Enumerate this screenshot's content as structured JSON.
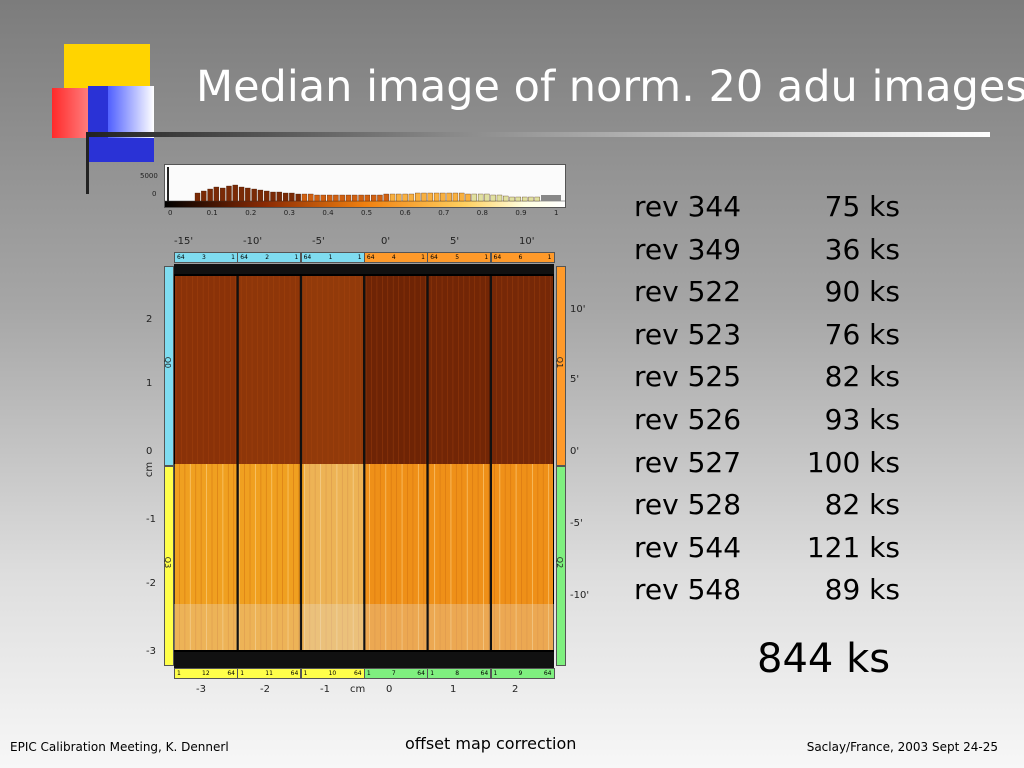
{
  "slide": {
    "title": "Median image of norm. 20 adu images",
    "footer_left": "EPIC Calibration Meeting, K. Dennerl",
    "footer_center": "offset map correction",
    "footer_right": "Saclay/France, 2003 Sept 24-25",
    "total": "844 ks"
  },
  "histogram": {
    "y_ticks": [
      "5000",
      "0"
    ],
    "x_ticks": [
      "0",
      "0.1",
      "0.2",
      "0.3",
      "0.4",
      "0.5",
      "0.6",
      "0.7",
      "0.8",
      "0.9",
      "1"
    ]
  },
  "detector": {
    "top_ticks": [
      "-15'",
      "-10'",
      "-5'",
      "0'",
      "5'",
      "10'"
    ],
    "bottom_ticks": [
      "-3",
      "-2",
      "-1",
      "cm",
      "0",
      "1",
      "2"
    ],
    "left_ticks": [
      "2",
      "1",
      "0",
      "cm",
      "-1",
      "-2",
      "-3"
    ],
    "right_ticks": [
      "10'",
      "5'",
      "0'",
      "-5'",
      "-10'"
    ],
    "quadrant_labels": [
      "Q0",
      "Q1",
      "Q2",
      "Q3"
    ],
    "top_ccds": [
      {
        "first": "64",
        "num": "3",
        "last": "1"
      },
      {
        "first": "64",
        "num": "2",
        "last": "1"
      },
      {
        "first": "64",
        "num": "1",
        "last": "1"
      },
      {
        "first": "64",
        "num": "4",
        "last": "1"
      },
      {
        "first": "64",
        "num": "5",
        "last": "1"
      },
      {
        "first": "64",
        "num": "6",
        "last": "1"
      }
    ],
    "bottom_ccds": [
      {
        "first": "1",
        "num": "12",
        "last": "64"
      },
      {
        "first": "1",
        "num": "11",
        "last": "64"
      },
      {
        "first": "1",
        "num": "10",
        "last": "64"
      },
      {
        "first": "1",
        "num": "7",
        "last": "64"
      },
      {
        "first": "1",
        "num": "8",
        "last": "64"
      },
      {
        "first": "1",
        "num": "9",
        "last": "64"
      }
    ]
  },
  "revolutions": [
    {
      "rev": "rev 344",
      "ks": "75 ks"
    },
    {
      "rev": "rev 349",
      "ks": "36 ks"
    },
    {
      "rev": "rev 522",
      "ks": "90 ks"
    },
    {
      "rev": "rev 523",
      "ks": "76 ks"
    },
    {
      "rev": "rev 525",
      "ks": "82 ks"
    },
    {
      "rev": "rev 526",
      "ks": "93 ks"
    },
    {
      "rev": "rev 527",
      "ks": "100 ks"
    },
    {
      "rev": "rev 528",
      "ks": "82 ks"
    },
    {
      "rev": "rev 544",
      "ks": "121 ks"
    },
    {
      "rev": "rev 548",
      "ks": "89 ks"
    }
  ],
  "colors": {
    "title": "#ffffff",
    "ccd_top_left_strip": "#7fdcf0",
    "ccd_top_right_strip": "#ff9a2a",
    "ccd_bottom_left_strip": "#ffff4a",
    "ccd_bottom_right_strip": "#7ff07f",
    "dark_quadrant": "#7a2a06",
    "bright_quadrant": "#f39a20"
  }
}
